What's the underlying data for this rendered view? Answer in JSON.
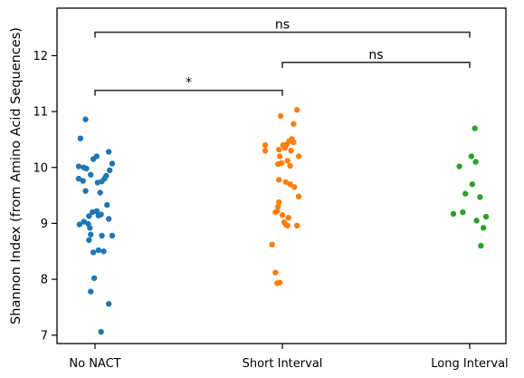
{
  "chart_data": {
    "type": "scatter",
    "title": "",
    "xlabel": "",
    "ylabel": "Shannon Index (from Amino Acid Sequences)",
    "categories": [
      "No NACT",
      "Short Interval",
      "Long Interval"
    ],
    "ylim": [
      6.85,
      12.85
    ],
    "yticks": [
      7,
      8,
      9,
      10,
      11,
      12
    ],
    "grid": false,
    "legend": "none",
    "series": [
      {
        "category": "No NACT",
        "color": "#1f77b4",
        "points": [
          {
            "jitter": -0.11,
            "y": 10.86
          },
          {
            "jitter": -0.17,
            "y": 10.52
          },
          {
            "jitter": 0.16,
            "y": 10.28
          },
          {
            "jitter": 0.02,
            "y": 10.2
          },
          {
            "jitter": -0.02,
            "y": 10.15
          },
          {
            "jitter": 0.2,
            "y": 10.07
          },
          {
            "jitter": -0.19,
            "y": 10.02
          },
          {
            "jitter": -0.13,
            "y": 10.0
          },
          {
            "jitter": -0.1,
            "y": 9.98
          },
          {
            "jitter": 0.17,
            "y": 9.95
          },
          {
            "jitter": -0.05,
            "y": 9.87
          },
          {
            "jitter": 0.13,
            "y": 9.85
          },
          {
            "jitter": 0.11,
            "y": 9.8
          },
          {
            "jitter": -0.19,
            "y": 9.8
          },
          {
            "jitter": -0.14,
            "y": 9.76
          },
          {
            "jitter": 0.08,
            "y": 9.75
          },
          {
            "jitter": 0.03,
            "y": 9.73
          },
          {
            "jitter": -0.11,
            "y": 9.58
          },
          {
            "jitter": 0.06,
            "y": 9.55
          },
          {
            "jitter": 0.14,
            "y": 9.33
          },
          {
            "jitter": 0.02,
            "y": 9.22
          },
          {
            "jitter": -0.03,
            "y": 9.2
          },
          {
            "jitter": 0.07,
            "y": 9.16
          },
          {
            "jitter": 0.04,
            "y": 9.14
          },
          {
            "jitter": -0.07,
            "y": 9.13
          },
          {
            "jitter": 0.16,
            "y": 9.08
          },
          {
            "jitter": -0.13,
            "y": 9.03
          },
          {
            "jitter": -0.08,
            "y": 8.99
          },
          {
            "jitter": -0.18,
            "y": 8.98
          },
          {
            "jitter": -0.06,
            "y": 8.92
          },
          {
            "jitter": -0.05,
            "y": 8.8
          },
          {
            "jitter": 0.08,
            "y": 8.78
          },
          {
            "jitter": 0.2,
            "y": 8.78
          },
          {
            "jitter": -0.07,
            "y": 8.7
          },
          {
            "jitter": 0.04,
            "y": 8.52
          },
          {
            "jitter": 0.1,
            "y": 8.5
          },
          {
            "jitter": -0.02,
            "y": 8.48
          },
          {
            "jitter": -0.01,
            "y": 8.02
          },
          {
            "jitter": -0.05,
            "y": 7.78
          },
          {
            "jitter": 0.16,
            "y": 7.56
          },
          {
            "jitter": 0.07,
            "y": 7.06
          }
        ]
      },
      {
        "category": "Short Interval",
        "color": "#ff7f0e",
        "points": [
          {
            "jitter": 0.17,
            "y": 11.03
          },
          {
            "jitter": -0.02,
            "y": 10.92
          },
          {
            "jitter": 0.13,
            "y": 10.78
          },
          {
            "jitter": 0.11,
            "y": 10.51
          },
          {
            "jitter": 0.08,
            "y": 10.47
          },
          {
            "jitter": 0.13,
            "y": 10.45
          },
          {
            "jitter": 0.05,
            "y": 10.41
          },
          {
            "jitter": -0.2,
            "y": 10.4
          },
          {
            "jitter": 0.01,
            "y": 10.4
          },
          {
            "jitter": 0.03,
            "y": 10.35
          },
          {
            "jitter": -0.04,
            "y": 10.32
          },
          {
            "jitter": 0.1,
            "y": 10.3
          },
          {
            "jitter": -0.2,
            "y": 10.3
          },
          {
            "jitter": 0.19,
            "y": 10.2
          },
          {
            "jitter": -0.03,
            "y": 10.2
          },
          {
            "jitter": 0.06,
            "y": 10.12
          },
          {
            "jitter": -0.01,
            "y": 10.08
          },
          {
            "jitter": -0.05,
            "y": 10.06
          },
          {
            "jitter": 0.09,
            "y": 10.03
          },
          {
            "jitter": -0.04,
            "y": 9.78
          },
          {
            "jitter": 0.04,
            "y": 9.74
          },
          {
            "jitter": 0.09,
            "y": 9.7
          },
          {
            "jitter": 0.14,
            "y": 9.65
          },
          {
            "jitter": 0.19,
            "y": 9.48
          },
          {
            "jitter": -0.04,
            "y": 9.38
          },
          {
            "jitter": -0.05,
            "y": 9.3
          },
          {
            "jitter": -0.06,
            "y": 9.22
          },
          {
            "jitter": -0.08,
            "y": 9.2
          },
          {
            "jitter": 0.0,
            "y": 9.15
          },
          {
            "jitter": 0.07,
            "y": 9.1
          },
          {
            "jitter": 0.02,
            "y": 9.02
          },
          {
            "jitter": 0.04,
            "y": 8.98
          },
          {
            "jitter": 0.06,
            "y": 8.96
          },
          {
            "jitter": 0.17,
            "y": 8.96
          },
          {
            "jitter": -0.12,
            "y": 8.62
          },
          {
            "jitter": -0.08,
            "y": 8.12
          },
          {
            "jitter": -0.03,
            "y": 7.94
          },
          {
            "jitter": -0.06,
            "y": 7.93
          }
        ]
      },
      {
        "category": "Long Interval",
        "color": "#2ca02c",
        "points": [
          {
            "jitter": 0.06,
            "y": 10.7
          },
          {
            "jitter": 0.02,
            "y": 10.2
          },
          {
            "jitter": 0.07,
            "y": 10.1
          },
          {
            "jitter": -0.12,
            "y": 10.02
          },
          {
            "jitter": 0.03,
            "y": 9.7
          },
          {
            "jitter": -0.05,
            "y": 9.53
          },
          {
            "jitter": 0.12,
            "y": 9.47
          },
          {
            "jitter": -0.08,
            "y": 9.2
          },
          {
            "jitter": -0.19,
            "y": 9.17
          },
          {
            "jitter": 0.19,
            "y": 9.12
          },
          {
            "jitter": 0.08,
            "y": 9.05
          },
          {
            "jitter": 0.16,
            "y": 8.92
          },
          {
            "jitter": 0.13,
            "y": 8.6
          }
        ]
      }
    ],
    "annotations": [
      {
        "from": 0,
        "to": 1,
        "y": 11.38,
        "text": "*"
      },
      {
        "from": 1,
        "to": 2,
        "y": 11.88,
        "text": "ns"
      },
      {
        "from": 0,
        "to": 2,
        "y": 12.42,
        "text": "ns"
      }
    ]
  }
}
